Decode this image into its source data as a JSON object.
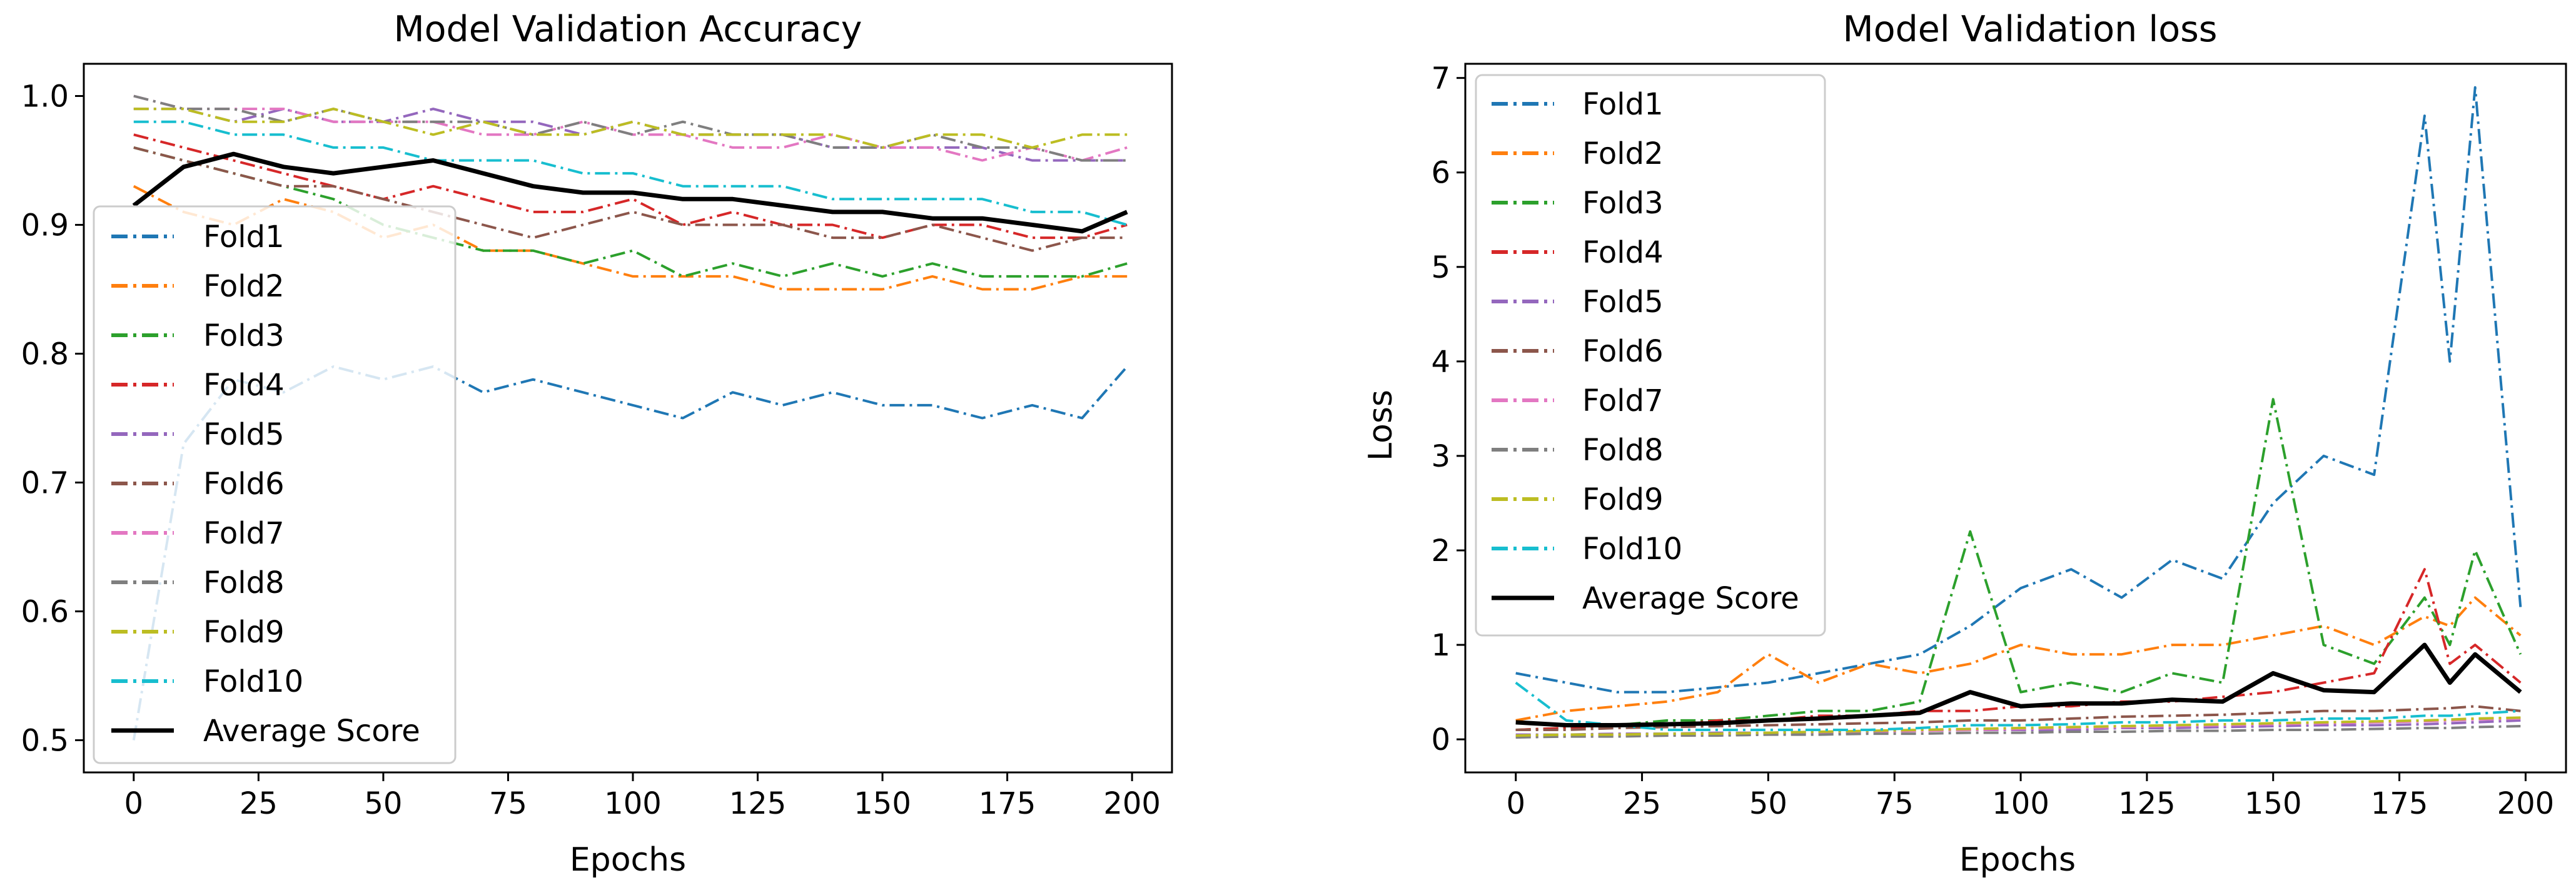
{
  "chart_data": [
    {
      "type": "line",
      "title": "Model Validation Accuracy",
      "xlabel": "Epochs",
      "ylabel": "",
      "xlim": [
        -10,
        208
      ],
      "ylim": [
        0.475,
        1.025
      ],
      "xticks": [
        0,
        25,
        50,
        75,
        100,
        125,
        150,
        175,
        200
      ],
      "yticks": [
        0.5,
        0.6,
        0.7,
        0.8,
        0.9,
        1.0
      ],
      "ytick_labels": [
        "0.5",
        "0.6",
        "0.7",
        "0.8",
        "0.9",
        "1.0"
      ],
      "legend_position": "lower-left",
      "x": [
        0,
        10,
        20,
        30,
        40,
        50,
        60,
        70,
        80,
        90,
        100,
        110,
        120,
        130,
        140,
        150,
        160,
        170,
        180,
        190,
        199
      ],
      "series": [
        {
          "name": "Fold1",
          "color": "#1f77b4",
          "style": "dashdot",
          "values": [
            0.5,
            0.73,
            0.78,
            0.77,
            0.79,
            0.78,
            0.79,
            0.77,
            0.78,
            0.77,
            0.76,
            0.75,
            0.77,
            0.76,
            0.77,
            0.76,
            0.76,
            0.75,
            0.76,
            0.75,
            0.79
          ]
        },
        {
          "name": "Fold2",
          "color": "#ff7f0e",
          "style": "dashdot",
          "values": [
            0.93,
            0.91,
            0.9,
            0.92,
            0.91,
            0.89,
            0.9,
            0.88,
            0.88,
            0.87,
            0.86,
            0.86,
            0.86,
            0.85,
            0.85,
            0.85,
            0.86,
            0.85,
            0.85,
            0.86,
            0.86
          ]
        },
        {
          "name": "Fold3",
          "color": "#2ca02c",
          "style": "dashdot",
          "values": [
            0.96,
            0.95,
            0.94,
            0.93,
            0.92,
            0.9,
            0.89,
            0.88,
            0.88,
            0.87,
            0.88,
            0.86,
            0.87,
            0.86,
            0.87,
            0.86,
            0.87,
            0.86,
            0.86,
            0.86,
            0.87
          ]
        },
        {
          "name": "Fold4",
          "color": "#d62728",
          "style": "dashdot",
          "values": [
            0.97,
            0.96,
            0.95,
            0.94,
            0.93,
            0.92,
            0.93,
            0.92,
            0.91,
            0.91,
            0.92,
            0.9,
            0.91,
            0.9,
            0.9,
            0.89,
            0.9,
            0.9,
            0.89,
            0.89,
            0.9
          ]
        },
        {
          "name": "Fold5",
          "color": "#9467bd",
          "style": "dashdot",
          "values": [
            0.99,
            0.99,
            0.98,
            0.99,
            0.98,
            0.98,
            0.99,
            0.98,
            0.98,
            0.97,
            0.98,
            0.97,
            0.97,
            0.97,
            0.96,
            0.96,
            0.96,
            0.96,
            0.95,
            0.95,
            0.95
          ]
        },
        {
          "name": "Fold6",
          "color": "#8c564b",
          "style": "dashdot",
          "values": [
            0.96,
            0.95,
            0.94,
            0.93,
            0.93,
            0.92,
            0.91,
            0.9,
            0.89,
            0.9,
            0.91,
            0.9,
            0.9,
            0.9,
            0.89,
            0.89,
            0.9,
            0.89,
            0.88,
            0.89,
            0.89
          ]
        },
        {
          "name": "Fold7",
          "color": "#e377c2",
          "style": "dashdot",
          "values": [
            1.0,
            0.99,
            0.99,
            0.99,
            0.98,
            0.98,
            0.98,
            0.97,
            0.97,
            0.98,
            0.97,
            0.97,
            0.96,
            0.96,
            0.97,
            0.96,
            0.96,
            0.95,
            0.96,
            0.95,
            0.96
          ]
        },
        {
          "name": "Fold8",
          "color": "#7f7f7f",
          "style": "dashdot",
          "values": [
            1.0,
            0.99,
            0.99,
            0.98,
            0.99,
            0.98,
            0.98,
            0.98,
            0.97,
            0.98,
            0.97,
            0.98,
            0.97,
            0.97,
            0.96,
            0.96,
            0.97,
            0.96,
            0.96,
            0.95,
            0.95
          ]
        },
        {
          "name": "Fold9",
          "color": "#bcbd22",
          "style": "dashdot",
          "values": [
            0.99,
            0.99,
            0.98,
            0.98,
            0.99,
            0.98,
            0.97,
            0.98,
            0.97,
            0.97,
            0.98,
            0.97,
            0.97,
            0.97,
            0.97,
            0.96,
            0.97,
            0.97,
            0.96,
            0.97,
            0.97
          ]
        },
        {
          "name": "Fold10",
          "color": "#17becf",
          "style": "dashdot",
          "values": [
            0.98,
            0.98,
            0.97,
            0.97,
            0.96,
            0.96,
            0.95,
            0.95,
            0.95,
            0.94,
            0.94,
            0.93,
            0.93,
            0.93,
            0.92,
            0.92,
            0.92,
            0.92,
            0.91,
            0.91,
            0.9
          ]
        },
        {
          "name": "Average Score",
          "color": "#000000",
          "style": "solid",
          "values": [
            0.915,
            0.945,
            0.955,
            0.945,
            0.94,
            0.945,
            0.95,
            0.94,
            0.93,
            0.925,
            0.925,
            0.92,
            0.92,
            0.915,
            0.91,
            0.91,
            0.905,
            0.905,
            0.9,
            0.895,
            0.91
          ]
        }
      ]
    },
    {
      "type": "line",
      "title": "Model Validation loss",
      "xlabel": "Epochs",
      "ylabel": "Loss",
      "xlim": [
        -10,
        208
      ],
      "ylim": [
        -0.35,
        7.15
      ],
      "xticks": [
        0,
        25,
        50,
        75,
        100,
        125,
        150,
        175,
        200
      ],
      "yticks": [
        0,
        1,
        2,
        3,
        4,
        5,
        6,
        7
      ],
      "ytick_labels": [
        "0",
        "1",
        "2",
        "3",
        "4",
        "5",
        "6",
        "7"
      ],
      "legend_position": "upper-left",
      "x": [
        0,
        10,
        20,
        30,
        40,
        50,
        60,
        70,
        80,
        90,
        100,
        110,
        120,
        130,
        140,
        150,
        160,
        170,
        180,
        185,
        190,
        199
      ],
      "series": [
        {
          "name": "Fold1",
          "color": "#1f77b4",
          "style": "dashdot",
          "values": [
            0.7,
            0.6,
            0.5,
            0.5,
            0.55,
            0.6,
            0.7,
            0.8,
            0.9,
            1.2,
            1.6,
            1.8,
            1.5,
            1.9,
            1.7,
            2.5,
            3.0,
            2.8,
            6.6,
            4.0,
            6.9,
            1.4
          ]
        },
        {
          "name": "Fold2",
          "color": "#ff7f0e",
          "style": "dashdot",
          "values": [
            0.2,
            0.3,
            0.35,
            0.4,
            0.5,
            0.9,
            0.6,
            0.8,
            0.7,
            0.8,
            1.0,
            0.9,
            0.9,
            1.0,
            1.0,
            1.1,
            1.2,
            1.0,
            1.3,
            1.2,
            1.5,
            1.1
          ]
        },
        {
          "name": "Fold3",
          "color": "#2ca02c",
          "style": "dashdot",
          "values": [
            0.1,
            0.12,
            0.15,
            0.2,
            0.2,
            0.25,
            0.3,
            0.3,
            0.4,
            2.2,
            0.5,
            0.6,
            0.5,
            0.7,
            0.6,
            3.6,
            1.0,
            0.8,
            1.5,
            1.0,
            2.0,
            0.9
          ]
        },
        {
          "name": "Fold4",
          "color": "#d62728",
          "style": "dashdot",
          "values": [
            0.1,
            0.12,
            0.15,
            0.15,
            0.2,
            0.2,
            0.25,
            0.25,
            0.3,
            0.3,
            0.35,
            0.35,
            0.4,
            0.4,
            0.45,
            0.5,
            0.6,
            0.7,
            1.8,
            0.8,
            1.0,
            0.6
          ]
        },
        {
          "name": "Fold5",
          "color": "#9467bd",
          "style": "dashdot",
          "values": [
            0.05,
            0.05,
            0.06,
            0.06,
            0.07,
            0.07,
            0.08,
            0.08,
            0.09,
            0.1,
            0.1,
            0.1,
            0.12,
            0.12,
            0.13,
            0.14,
            0.15,
            0.15,
            0.16,
            0.17,
            0.18,
            0.2
          ]
        },
        {
          "name": "Fold6",
          "color": "#8c564b",
          "style": "dashdot",
          "values": [
            0.1,
            0.1,
            0.12,
            0.13,
            0.14,
            0.15,
            0.16,
            0.17,
            0.18,
            0.2,
            0.2,
            0.22,
            0.24,
            0.25,
            0.26,
            0.28,
            0.3,
            0.3,
            0.32,
            0.33,
            0.35,
            0.3
          ]
        },
        {
          "name": "Fold7",
          "color": "#e377c2",
          "style": "dashdot",
          "values": [
            0.03,
            0.03,
            0.04,
            0.05,
            0.05,
            0.06,
            0.07,
            0.08,
            0.09,
            0.1,
            0.11,
            0.12,
            0.13,
            0.14,
            0.15,
            0.16,
            0.17,
            0.18,
            0.19,
            0.2,
            0.21,
            0.22
          ]
        },
        {
          "name": "Fold8",
          "color": "#7f7f7f",
          "style": "dashdot",
          "values": [
            0.02,
            0.03,
            0.03,
            0.04,
            0.04,
            0.05,
            0.05,
            0.06,
            0.06,
            0.07,
            0.07,
            0.08,
            0.08,
            0.09,
            0.09,
            0.1,
            0.1,
            0.11,
            0.12,
            0.12,
            0.13,
            0.14
          ]
        },
        {
          "name": "Fold9",
          "color": "#bcbd22",
          "style": "dashdot",
          "values": [
            0.04,
            0.05,
            0.05,
            0.06,
            0.06,
            0.07,
            0.08,
            0.09,
            0.1,
            0.11,
            0.12,
            0.13,
            0.14,
            0.15,
            0.16,
            0.17,
            0.18,
            0.19,
            0.2,
            0.21,
            0.22,
            0.23
          ]
        },
        {
          "name": "Fold10",
          "color": "#17becf",
          "style": "dashdot",
          "values": [
            0.6,
            0.2,
            0.15,
            0.1,
            0.1,
            0.1,
            0.1,
            0.1,
            0.12,
            0.15,
            0.15,
            0.16,
            0.18,
            0.18,
            0.2,
            0.2,
            0.22,
            0.22,
            0.25,
            0.25,
            0.27,
            0.3
          ]
        },
        {
          "name": "Average Score",
          "color": "#000000",
          "style": "solid",
          "values": [
            0.18,
            0.15,
            0.15,
            0.16,
            0.17,
            0.2,
            0.22,
            0.25,
            0.28,
            0.5,
            0.35,
            0.38,
            0.38,
            0.42,
            0.4,
            0.7,
            0.52,
            0.5,
            1.0,
            0.6,
            0.9,
            0.5
          ]
        }
      ]
    }
  ]
}
